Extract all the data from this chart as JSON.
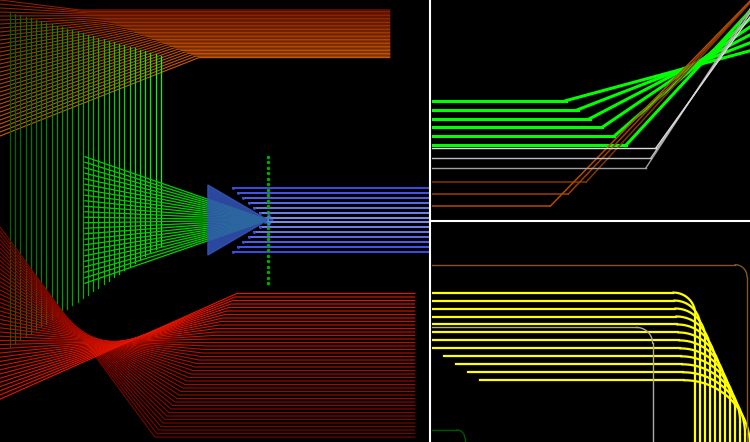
{
  "bg_color": "#000000",
  "fig_width": 7.5,
  "fig_height": 4.42,
  "dpi": 100,
  "green_bright": "#00ff00",
  "yellow": "#ffff00",
  "blue": "#5577ff",
  "white": "#ffffff"
}
